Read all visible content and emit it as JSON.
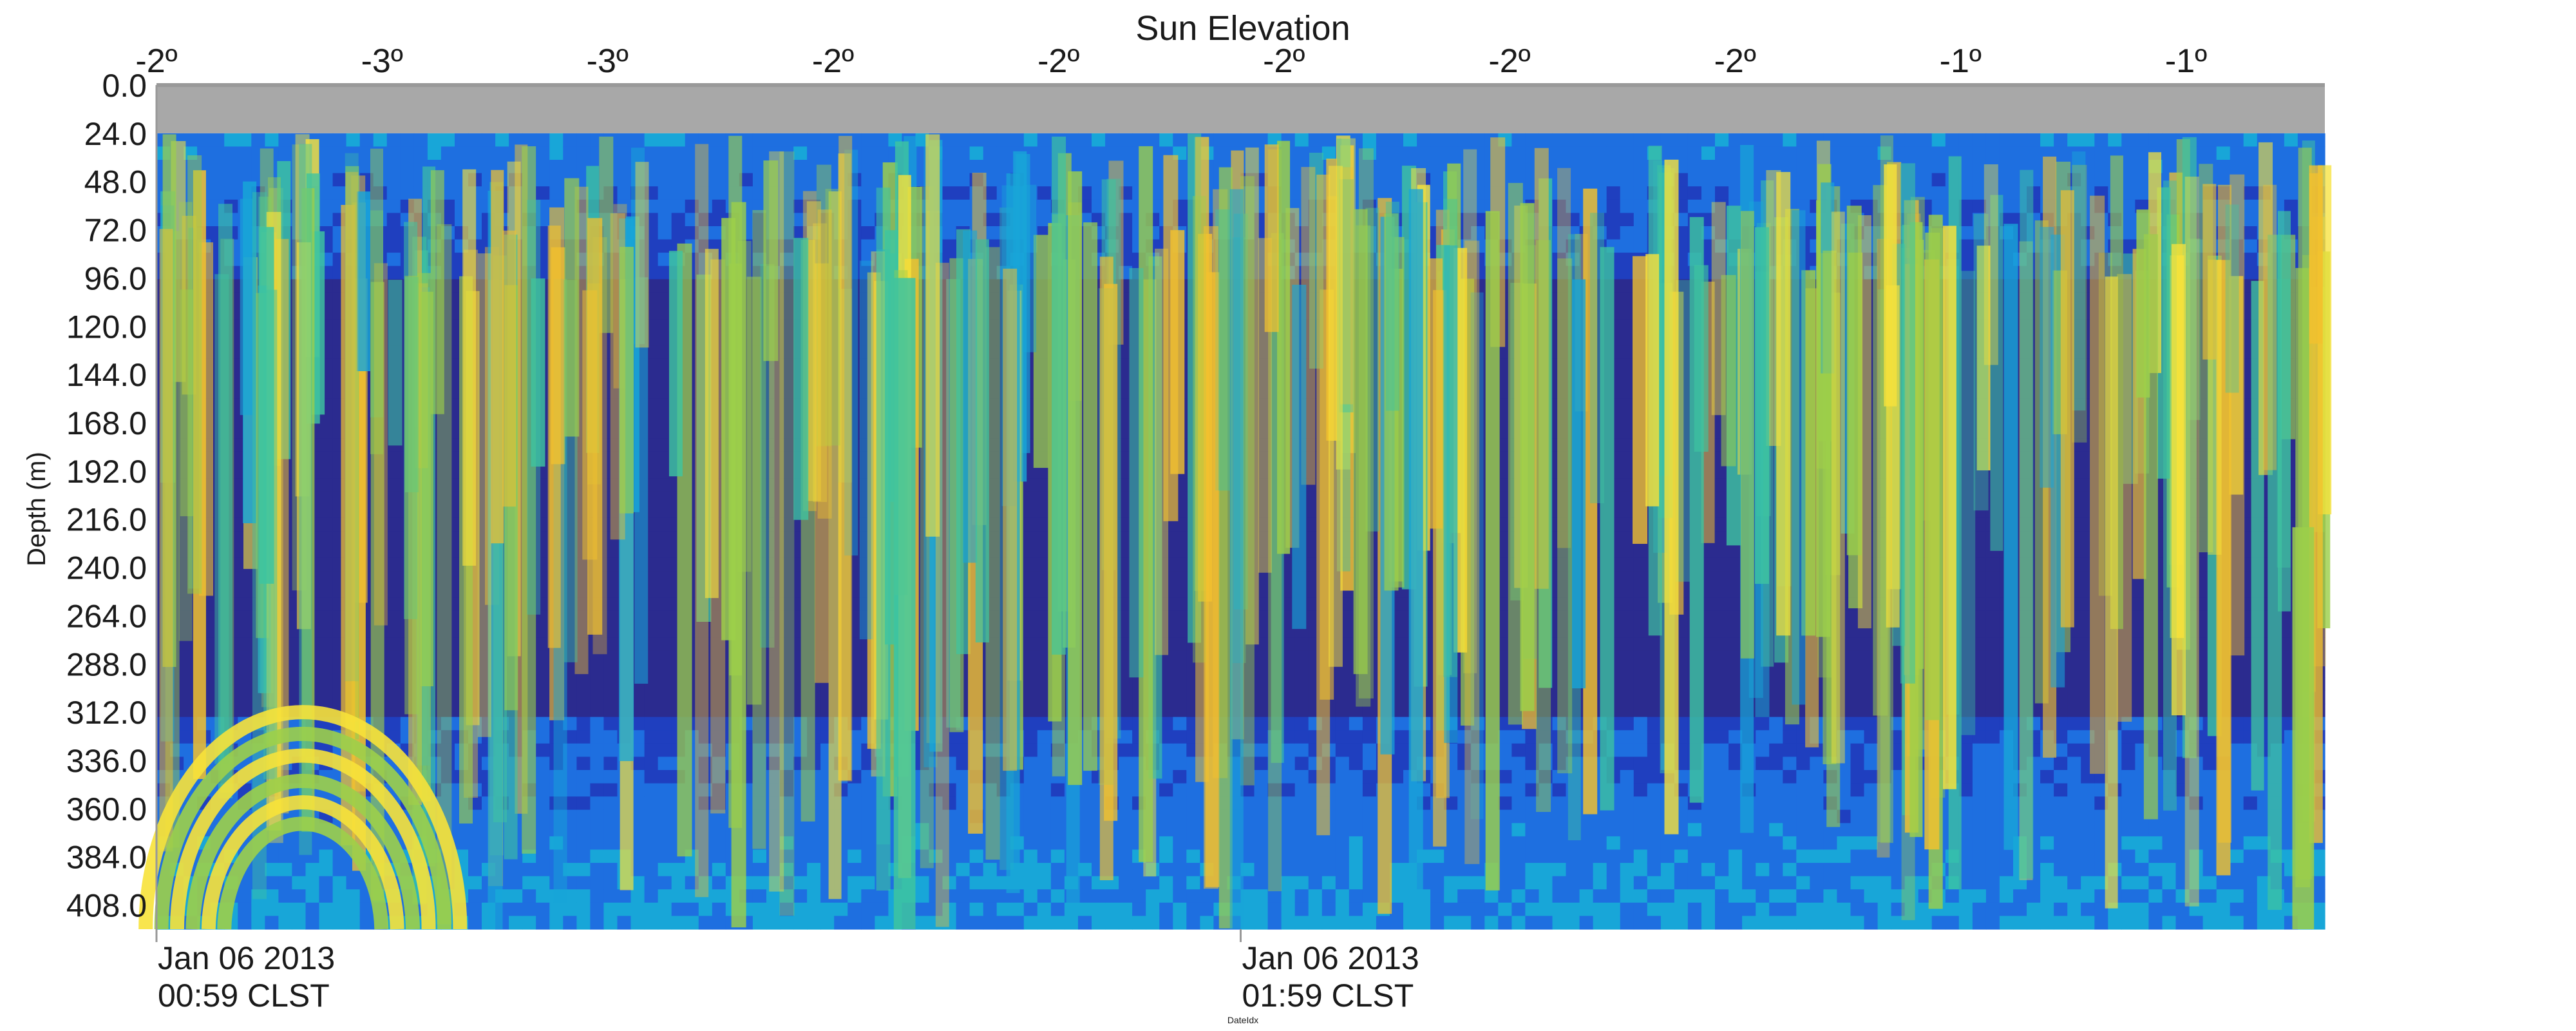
{
  "chart_data": {
    "type": "heatmap",
    "title": "Sun Elevation",
    "ylabel": "Depth (m)",
    "xlabel": "DateIdx",
    "ylim": [
      0.0,
      420.0
    ],
    "y_reversed": true,
    "y_ticks": [
      "0.0",
      "24.0",
      "48.0",
      "72.0",
      "96.0",
      "120.0",
      "144.0",
      "168.0",
      "192.0",
      "216.0",
      "240.0",
      "264.0",
      "288.0",
      "312.0",
      "336.0",
      "360.0",
      "384.0",
      "408.0"
    ],
    "y_tick_values": [
      0,
      24,
      48,
      72,
      96,
      120,
      144,
      168,
      192,
      216,
      240,
      264,
      288,
      312,
      336,
      360,
      384,
      408
    ],
    "top_axis_ticks": [
      "-2º",
      "-3º",
      "-3º",
      "-2º",
      "-2º",
      "-2º",
      "-2º",
      "-2º",
      "-1º",
      "-1º"
    ],
    "top_axis_fractions": [
      0.0,
      0.104,
      0.208,
      0.312,
      0.416,
      0.52,
      0.624,
      0.728,
      0.832,
      0.936
    ],
    "x_ticks": [
      {
        "fraction": 0.0,
        "line1": "Jan 06 2013",
        "line2": "00:59 CLST"
      },
      {
        "fraction": 0.5,
        "line1": "Jan 06 2013",
        "line2": "01:59 CLST"
      }
    ],
    "blank_depth_range": [
      0.0,
      24.0
    ],
    "colormap": [
      "#2b2b8f",
      "#1f3fbf",
      "#1e6fe0",
      "#18a6d8",
      "#3ec4a0",
      "#9ccf4a",
      "#f2c12e",
      "#f7e23a"
    ],
    "features": [
      {
        "name": "surface-band",
        "depth": [
          24,
          96
        ],
        "level": 0.35
      },
      {
        "name": "deep-scattering-layer",
        "depth": [
          312,
          420
        ],
        "level": 0.4
      },
      {
        "name": "bright-arc",
        "x": [
          0.0,
          0.145
        ],
        "depth": [
          312,
          420
        ],
        "level": 0.9
      },
      {
        "name": "vertical-streak",
        "x": [
          0.34,
          0.35
        ],
        "depth": [
          96,
          420
        ],
        "level": 0.6
      },
      {
        "name": "vertical-streak",
        "x": [
          0.985,
          0.995
        ],
        "depth": [
          220,
          420
        ],
        "level": 0.7
      }
    ],
    "colors": {
      "blank": "#a8a8a8",
      "axis": "#999999"
    }
  }
}
